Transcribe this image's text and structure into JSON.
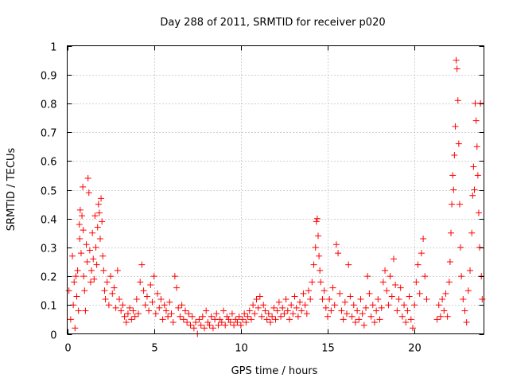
{
  "chart_data": {
    "type": "scatter",
    "title": "Day 288 of 2011, SRMTID for receiver p020",
    "xlabel": "GPS time / hours",
    "ylabel": "SRMTID / TECUs",
    "xlim": [
      0,
      24
    ],
    "ylim": [
      0,
      1
    ],
    "xticks": [
      0,
      5,
      10,
      15,
      20
    ],
    "yticks": [
      0,
      0.1,
      0.2,
      0.3,
      0.4,
      0.5,
      0.6,
      0.7,
      0.8,
      0.9,
      1
    ],
    "xtick_labels": [
      "0",
      "5",
      "10",
      "15",
      "20"
    ],
    "ytick_labels": [
      "0",
      "0.1",
      "0.2",
      "0.3",
      "0.4",
      "0.5",
      "0.6",
      "0.7",
      "0.8",
      "0.9",
      "1"
    ],
    "grid": true,
    "marker": "+",
    "color": "#ff0000",
    "series": [
      {
        "name": "SRMTID",
        "points": [
          [
            0.1,
            0.15
          ],
          [
            0.2,
            0.05
          ],
          [
            0.3,
            0.27
          ],
          [
            0.35,
            0.1
          ],
          [
            0.4,
            0.18
          ],
          [
            0.45,
            0.02
          ],
          [
            0.5,
            0.2
          ],
          [
            0.55,
            0.13
          ],
          [
            0.6,
            0.22
          ],
          [
            0.65,
            0.08
          ],
          [
            0.7,
            0.38
          ],
          [
            0.72,
            0.33
          ],
          [
            0.75,
            0.43
          ],
          [
            0.8,
            0.28
          ],
          [
            0.85,
            0.41
          ],
          [
            0.9,
            0.51
          ],
          [
            0.92,
            0.36
          ],
          [
            0.95,
            0.2
          ],
          [
            1.0,
            0.15
          ],
          [
            1.05,
            0.08
          ],
          [
            1.1,
            0.31
          ],
          [
            1.15,
            0.25
          ],
          [
            1.2,
            0.54
          ],
          [
            1.25,
            0.49
          ],
          [
            1.3,
            0.29
          ],
          [
            1.35,
            0.18
          ],
          [
            1.4,
            0.22
          ],
          [
            1.45,
            0.35
          ],
          [
            1.5,
            0.26
          ],
          [
            1.55,
            0.19
          ],
          [
            1.6,
            0.41
          ],
          [
            1.65,
            0.3
          ],
          [
            1.7,
            0.24
          ],
          [
            1.75,
            0.37
          ],
          [
            1.8,
            0.45
          ],
          [
            1.85,
            0.42
          ],
          [
            1.9,
            0.33
          ],
          [
            1.95,
            0.47
          ],
          [
            2.0,
            0.39
          ],
          [
            2.05,
            0.27
          ],
          [
            2.1,
            0.22
          ],
          [
            2.15,
            0.15
          ],
          [
            2.2,
            0.12
          ],
          [
            2.3,
            0.18
          ],
          [
            2.4,
            0.1
          ],
          [
            2.5,
            0.2
          ],
          [
            2.6,
            0.14
          ],
          [
            2.7,
            0.16
          ],
          [
            2.8,
            0.09
          ],
          [
            2.9,
            0.22
          ],
          [
            3.0,
            0.12
          ],
          [
            3.1,
            0.08
          ],
          [
            3.2,
            0.1
          ],
          [
            3.3,
            0.06
          ],
          [
            3.4,
            0.04
          ],
          [
            3.5,
            0.07
          ],
          [
            3.6,
            0.09
          ],
          [
            3.7,
            0.05
          ],
          [
            3.8,
            0.08
          ],
          [
            3.9,
            0.06
          ],
          [
            4.0,
            0.12
          ],
          [
            4.1,
            0.07
          ],
          [
            4.2,
            0.18
          ],
          [
            4.3,
            0.24
          ],
          [
            4.4,
            0.15
          ],
          [
            4.5,
            0.1
          ],
          [
            4.6,
            0.13
          ],
          [
            4.7,
            0.08
          ],
          [
            4.8,
            0.17
          ],
          [
            4.9,
            0.11
          ],
          [
            5.0,
            0.2
          ],
          [
            5.1,
            0.07
          ],
          [
            5.2,
            0.14
          ],
          [
            5.3,
            0.09
          ],
          [
            5.4,
            0.12
          ],
          [
            5.5,
            0.05
          ],
          [
            5.6,
            0.1
          ],
          [
            5.7,
            0.08
          ],
          [
            5.8,
            0.06
          ],
          [
            5.9,
            0.11
          ],
          [
            6.0,
            0.07
          ],
          [
            6.1,
            0.04
          ],
          [
            6.2,
            0.2
          ],
          [
            6.3,
            0.16
          ],
          [
            6.4,
            0.09
          ],
          [
            6.5,
            0.06
          ],
          [
            6.6,
            0.1
          ],
          [
            6.7,
            0.05
          ],
          [
            6.8,
            0.08
          ],
          [
            6.9,
            0.04
          ],
          [
            7.0,
            0.07
          ],
          [
            7.1,
            0.03
          ],
          [
            7.2,
            0.06
          ],
          [
            7.3,
            0.02
          ],
          [
            7.4,
            0.04
          ],
          [
            7.5,
            0.0
          ],
          [
            7.6,
            0.05
          ],
          [
            7.7,
            0.03
          ],
          [
            7.8,
            0.06
          ],
          [
            7.9,
            0.02
          ],
          [
            8.0,
            0.08
          ],
          [
            8.1,
            0.04
          ],
          [
            8.2,
            0.03
          ],
          [
            8.3,
            0.06
          ],
          [
            8.4,
            0.02
          ],
          [
            8.5,
            0.05
          ],
          [
            8.6,
            0.07
          ],
          [
            8.7,
            0.03
          ],
          [
            8.8,
            0.05
          ],
          [
            8.9,
            0.04
          ],
          [
            9.0,
            0.08
          ],
          [
            9.1,
            0.03
          ],
          [
            9.2,
            0.06
          ],
          [
            9.3,
            0.05
          ],
          [
            9.4,
            0.04
          ],
          [
            9.5,
            0.07
          ],
          [
            9.6,
            0.03
          ],
          [
            9.7,
            0.05
          ],
          [
            9.8,
            0.04
          ],
          [
            9.9,
            0.06
          ],
          [
            10.0,
            0.03
          ],
          [
            10.1,
            0.05
          ],
          [
            10.2,
            0.07
          ],
          [
            10.3,
            0.04
          ],
          [
            10.4,
            0.06
          ],
          [
            10.5,
            0.08
          ],
          [
            10.6,
            0.05
          ],
          [
            10.7,
            0.1
          ],
          [
            10.8,
            0.07
          ],
          [
            10.9,
            0.12
          ],
          [
            11.0,
            0.09
          ],
          [
            11.1,
            0.13
          ],
          [
            11.2,
            0.06
          ],
          [
            11.3,
            0.1
          ],
          [
            11.4,
            0.08
          ],
          [
            11.5,
            0.05
          ],
          [
            11.6,
            0.07
          ],
          [
            11.7,
            0.04
          ],
          [
            11.8,
            0.06
          ],
          [
            11.9,
            0.09
          ],
          [
            12.0,
            0.05
          ],
          [
            12.1,
            0.08
          ],
          [
            12.2,
            0.11
          ],
          [
            12.3,
            0.06
          ],
          [
            12.4,
            0.09
          ],
          [
            12.5,
            0.07
          ],
          [
            12.6,
            0.12
          ],
          [
            12.7,
            0.08
          ],
          [
            12.8,
            0.05
          ],
          [
            12.9,
            0.1
          ],
          [
            13.0,
            0.07
          ],
          [
            13.1,
            0.13
          ],
          [
            13.2,
            0.09
          ],
          [
            13.3,
            0.06
          ],
          [
            13.4,
            0.11
          ],
          [
            13.5,
            0.08
          ],
          [
            13.6,
            0.14
          ],
          [
            13.7,
            0.1
          ],
          [
            13.8,
            0.07
          ],
          [
            13.9,
            0.15
          ],
          [
            14.0,
            0.12
          ],
          [
            14.1,
            0.18
          ],
          [
            14.2,
            0.24
          ],
          [
            14.3,
            0.3
          ],
          [
            14.35,
            0.39
          ],
          [
            14.4,
            0.4
          ],
          [
            14.45,
            0.34
          ],
          [
            14.5,
            0.27
          ],
          [
            14.55,
            0.22
          ],
          [
            14.6,
            0.18
          ],
          [
            14.7,
            0.12
          ],
          [
            14.8,
            0.15
          ],
          [
            14.9,
            0.09
          ],
          [
            15.0,
            0.06
          ],
          [
            15.1,
            0.12
          ],
          [
            15.2,
            0.08
          ],
          [
            15.3,
            0.16
          ],
          [
            15.4,
            0.1
          ],
          [
            15.5,
            0.31
          ],
          [
            15.6,
            0.28
          ],
          [
            15.7,
            0.14
          ],
          [
            15.8,
            0.08
          ],
          [
            15.9,
            0.05
          ],
          [
            16.0,
            0.11
          ],
          [
            16.1,
            0.07
          ],
          [
            16.2,
            0.24
          ],
          [
            16.3,
            0.13
          ],
          [
            16.4,
            0.06
          ],
          [
            16.5,
            0.1
          ],
          [
            16.6,
            0.04
          ],
          [
            16.7,
            0.08
          ],
          [
            16.8,
            0.05
          ],
          [
            16.9,
            0.12
          ],
          [
            17.0,
            0.07
          ],
          [
            17.1,
            0.03
          ],
          [
            17.2,
            0.09
          ],
          [
            17.3,
            0.2
          ],
          [
            17.4,
            0.14
          ],
          [
            17.5,
            0.06
          ],
          [
            17.6,
            0.1
          ],
          [
            17.7,
            0.04
          ],
          [
            17.8,
            0.08
          ],
          [
            17.9,
            0.12
          ],
          [
            18.0,
            0.05
          ],
          [
            18.1,
            0.09
          ],
          [
            18.2,
            0.18
          ],
          [
            18.3,
            0.22
          ],
          [
            18.4,
            0.15
          ],
          [
            18.5,
            0.1
          ],
          [
            18.6,
            0.2
          ],
          [
            18.7,
            0.13
          ],
          [
            18.8,
            0.26
          ],
          [
            18.9,
            0.17
          ],
          [
            19.0,
            0.08
          ],
          [
            19.1,
            0.12
          ],
          [
            19.2,
            0.16
          ],
          [
            19.3,
            0.06
          ],
          [
            19.4,
            0.1
          ],
          [
            19.5,
            0.04
          ],
          [
            19.6,
            0.08
          ],
          [
            19.7,
            0.13
          ],
          [
            19.8,
            0.05
          ],
          [
            19.9,
            0.02
          ],
          [
            20.0,
            0.1
          ],
          [
            20.1,
            0.18
          ],
          [
            20.2,
            0.24
          ],
          [
            20.3,
            0.14
          ],
          [
            20.4,
            0.28
          ],
          [
            20.5,
            0.33
          ],
          [
            20.6,
            0.2
          ],
          [
            20.7,
            0.12
          ],
          [
            21.3,
            0.05
          ],
          [
            21.4,
            0.1
          ],
          [
            21.5,
            0.06
          ],
          [
            21.6,
            0.12
          ],
          [
            21.7,
            0.08
          ],
          [
            21.8,
            0.14
          ],
          [
            21.9,
            0.06
          ],
          [
            22.0,
            0.18
          ],
          [
            22.05,
            0.25
          ],
          [
            22.1,
            0.35
          ],
          [
            22.15,
            0.45
          ],
          [
            22.2,
            0.55
          ],
          [
            22.25,
            0.5
          ],
          [
            22.3,
            0.62
          ],
          [
            22.35,
            0.72
          ],
          [
            22.4,
            0.95
          ],
          [
            22.45,
            0.92
          ],
          [
            22.5,
            0.81
          ],
          [
            22.55,
            0.66
          ],
          [
            22.6,
            0.45
          ],
          [
            22.65,
            0.3
          ],
          [
            22.7,
            0.2
          ],
          [
            22.8,
            0.12
          ],
          [
            22.9,
            0.08
          ],
          [
            23.0,
            0.04
          ],
          [
            23.1,
            0.15
          ],
          [
            23.2,
            0.22
          ],
          [
            23.3,
            0.35
          ],
          [
            23.35,
            0.48
          ],
          [
            23.4,
            0.58
          ],
          [
            23.45,
            0.5
          ],
          [
            23.5,
            0.8
          ],
          [
            23.55,
            0.74
          ],
          [
            23.6,
            0.65
          ],
          [
            23.65,
            0.55
          ],
          [
            23.7,
            0.42
          ],
          [
            23.75,
            0.3
          ],
          [
            23.8,
            0.8
          ],
          [
            23.85,
            0.2
          ],
          [
            23.9,
            0.12
          ]
        ]
      }
    ]
  }
}
